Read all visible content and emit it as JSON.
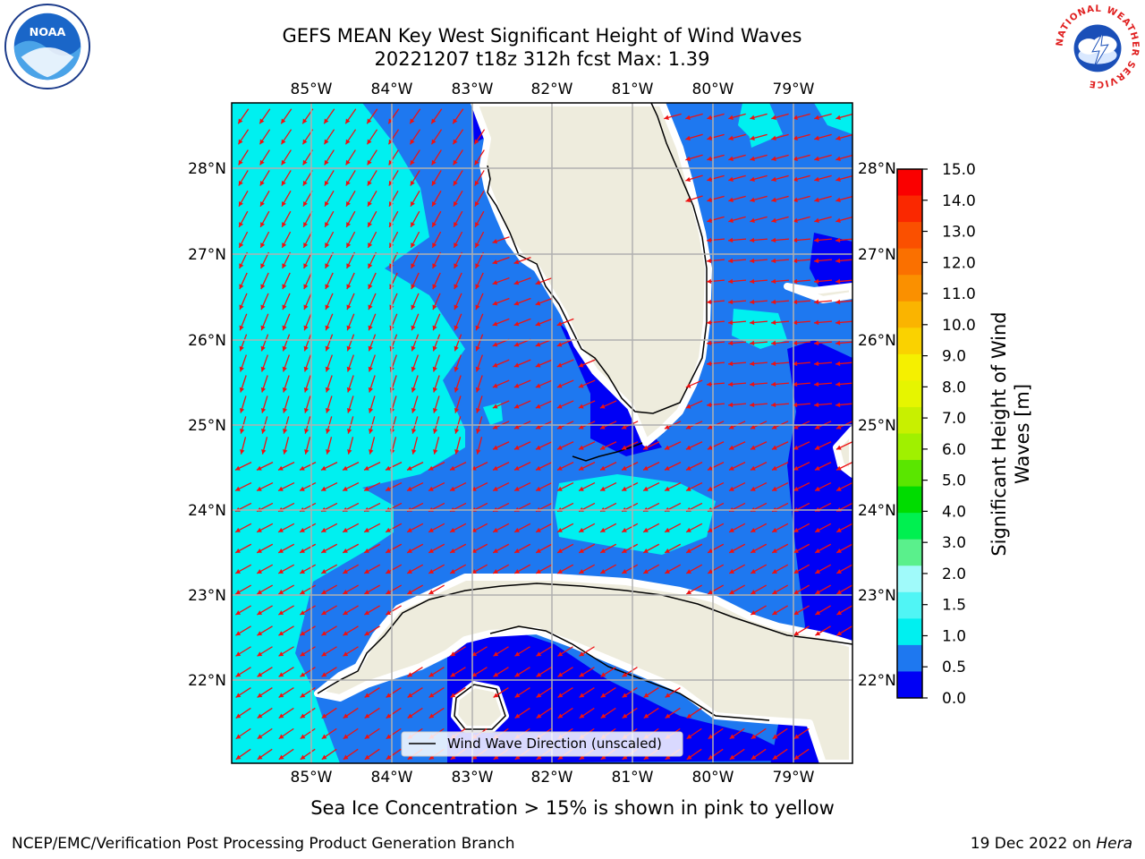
{
  "header": {
    "title_line1": "GEFS MEAN Key West Significant Height of Wind Waves",
    "title_line2": "20221207 t18z 312h fcst   Max: 1.39"
  },
  "map": {
    "lon_labels": [
      "85°W",
      "84°W",
      "83°W",
      "82°W",
      "81°W",
      "80°W",
      "79°W"
    ],
    "lat_labels": [
      "28°N",
      "27°N",
      "26°N",
      "25°N",
      "24°N",
      "23°N",
      "22°N"
    ],
    "legend_label": "Wind Wave Direction (unscaled)",
    "colors": {
      "land": "#eeecdd",
      "class_0_0p5": "#0000f5",
      "class_0p5_1": "#1e78f0",
      "class_1_1p5": "#00f0f0",
      "arrow": "#ee1111",
      "grid": "#b0b0b0"
    }
  },
  "colorbar": {
    "label_line1": "Significant Height of Wind",
    "label_line2": "Waves [m]",
    "ticks": [
      "15.0",
      "14.0",
      "13.0",
      "12.0",
      "11.0",
      "10.0",
      "9.0",
      "8.0",
      "7.0",
      "6.0",
      "5.0",
      "4.0",
      "3.0",
      "2.0",
      "1.5",
      "1.0",
      "0.5",
      "0.0"
    ],
    "colors_top_to_bottom": [
      "#fa0000",
      "#fa2800",
      "#fa5000",
      "#fa7000",
      "#fa9000",
      "#fab400",
      "#fad200",
      "#f5f000",
      "#e6f500",
      "#c8f000",
      "#a0f000",
      "#5ae600",
      "#00dc00",
      "#00f050",
      "#5af08c",
      "#a0fafa",
      "#50f5f5",
      "#00f0f0",
      "#1e78f0",
      "#0000f5"
    ]
  },
  "notes": {
    "sea_ice": "Sea Ice Concentration > 15% is shown in pink to yellow"
  },
  "footer": {
    "left": "NCEP/EMC/Verification Post Processing Product Generation Branch",
    "right_prefix": "19 Dec 2022 on ",
    "right_host": "Hera"
  },
  "logos": {
    "noaa_text": "NOAA",
    "nws_text": "NATIONAL WEATHER SERVICE"
  }
}
